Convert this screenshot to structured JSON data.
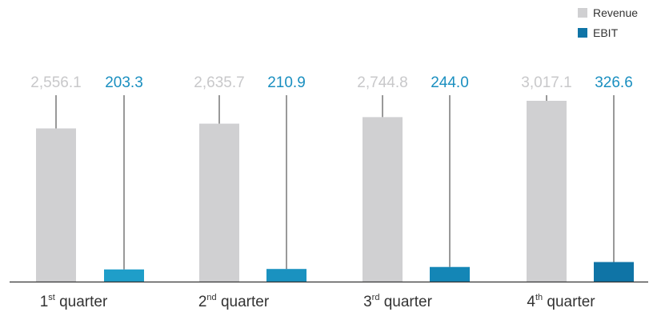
{
  "chart_data": {
    "type": "bar",
    "categories": [
      {
        "ordinal": "1",
        "suffix": "st",
        "word": "quarter"
      },
      {
        "ordinal": "2",
        "suffix": "nd",
        "word": "quarter"
      },
      {
        "ordinal": "3",
        "suffix": "rd",
        "word": "quarter"
      },
      {
        "ordinal": "4",
        "suffix": "th",
        "word": "quarter"
      }
    ],
    "series": [
      {
        "name": "Revenue",
        "values": [
          2556.1,
          2635.7,
          2744.8,
          3017.1
        ],
        "labels": [
          "2,556.1",
          "2,635.7",
          "2,744.8",
          "3,017.1"
        ],
        "color": "#d0d0d2",
        "label_color": "#c8c8ca"
      },
      {
        "name": "EBIT",
        "values": [
          203.3,
          210.9,
          244.0,
          326.6
        ],
        "labels": [
          "203.3",
          "210.9",
          "244.0",
          "326.6"
        ],
        "colors": [
          "#1f9ec9",
          "#1a92c0",
          "#1486b6",
          "#0f74a6"
        ],
        "label_color": "#1a8fc0"
      }
    ],
    "ylim": [
      0,
      3017.1
    ],
    "grid": false,
    "legend_position": "top-right"
  }
}
